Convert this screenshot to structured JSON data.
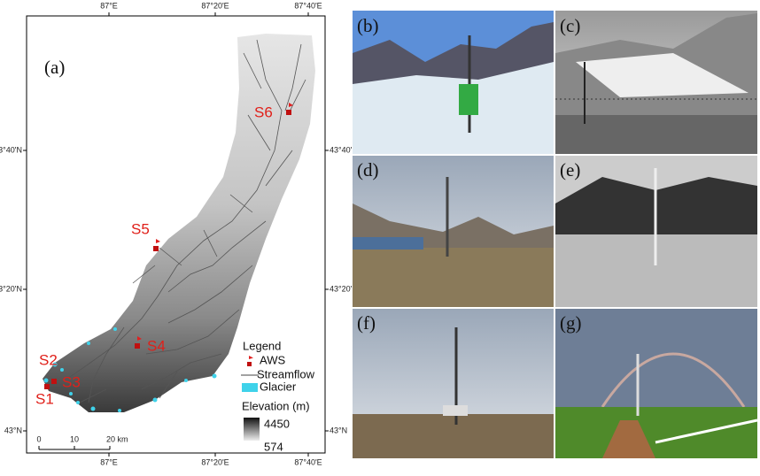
{
  "map": {
    "panel_label": "(a)",
    "x_ticks": [
      "87°E",
      "87°20'E",
      "87°40'E"
    ],
    "y_ticks": [
      "43°40'N",
      "43°20'N",
      "43°N"
    ],
    "stations": [
      "S1",
      "S2",
      "S3",
      "S4",
      "S5",
      "S6"
    ],
    "scale_bar": [
      "0",
      "10",
      "20 km"
    ],
    "legend": {
      "title": "Legend",
      "items": [
        "AWS",
        "Streamflow",
        "Glacier"
      ],
      "elevation_title": "Elevation (m)",
      "elevation_high": 4450,
      "elevation_low": 574
    }
  },
  "photos": [
    "(b)",
    "(c)",
    "(d)",
    "(e)",
    "(f)",
    "(g)"
  ]
}
